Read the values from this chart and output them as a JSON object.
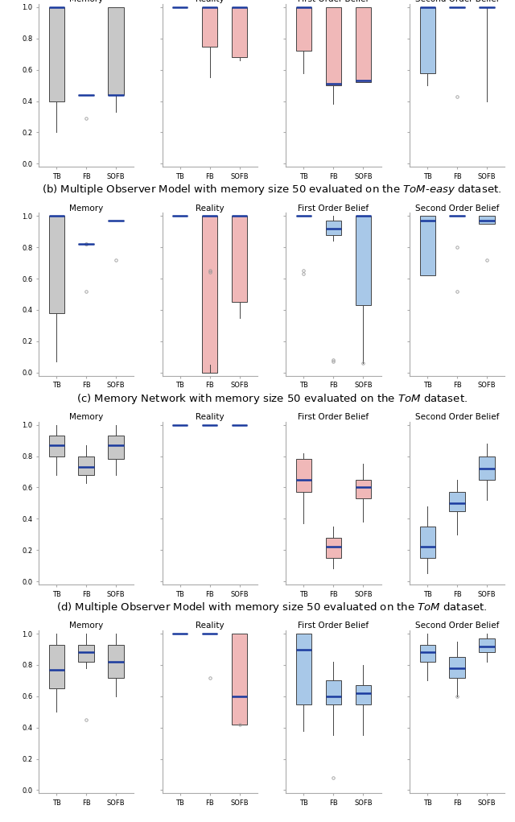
{
  "row0": {
    "subplots": [
      {
        "title": "Memory",
        "color": "#c8c8c8",
        "boxes": [
          {
            "label": "TB",
            "q1": 0.4,
            "median": 1.0,
            "q3": 1.0,
            "whislo": 0.2,
            "whishi": 1.0,
            "fliers": []
          },
          {
            "label": "FB",
            "q1": 0.44,
            "median": 0.44,
            "q3": 0.44,
            "whislo": 0.44,
            "whishi": 0.44,
            "fliers": [
              0.29
            ]
          },
          {
            "label": "SOFB",
            "q1": 0.44,
            "median": 0.44,
            "q3": 1.0,
            "whislo": 0.33,
            "whishi": 1.0,
            "fliers": []
          }
        ]
      },
      {
        "title": "Reality",
        "color": "#f0b8b8",
        "boxes": [
          {
            "label": "TB",
            "q1": 1.0,
            "median": 1.0,
            "q3": 1.0,
            "whislo": 1.0,
            "whishi": 1.0,
            "fliers": []
          },
          {
            "label": "FB",
            "q1": 0.75,
            "median": 1.0,
            "q3": 1.0,
            "whislo": 0.55,
            "whishi": 1.0,
            "fliers": []
          },
          {
            "label": "SOFB",
            "q1": 0.68,
            "median": 1.0,
            "q3": 1.0,
            "whislo": 0.66,
            "whishi": 1.0,
            "fliers": []
          }
        ]
      },
      {
        "title": "First Order Belief",
        "color": "#f0b8b8",
        "boxes": [
          {
            "label": "TB",
            "q1": 0.72,
            "median": 1.0,
            "q3": 1.0,
            "whislo": 0.58,
            "whishi": 1.0,
            "fliers": []
          },
          {
            "label": "FB",
            "q1": 0.5,
            "median": 0.51,
            "q3": 1.0,
            "whislo": 0.38,
            "whishi": 1.0,
            "fliers": []
          },
          {
            "label": "SOFB",
            "q1": 0.52,
            "median": 0.53,
            "q3": 1.0,
            "whislo": 0.52,
            "whishi": 1.0,
            "fliers": []
          }
        ]
      },
      {
        "title": "Second Order Belief",
        "color": "#a8c8e8",
        "boxes": [
          {
            "label": "TB",
            "q1": 0.58,
            "median": 1.0,
            "q3": 1.0,
            "whislo": 0.5,
            "whishi": 1.0,
            "fliers": []
          },
          {
            "label": "FB",
            "q1": 1.0,
            "median": 1.0,
            "q3": 1.0,
            "whislo": 1.0,
            "whishi": 1.0,
            "fliers": [
              0.43
            ]
          },
          {
            "label": "SOFB",
            "q1": 1.0,
            "median": 1.0,
            "q3": 1.0,
            "whislo": 0.4,
            "whishi": 1.0,
            "fliers": []
          }
        ]
      }
    ]
  },
  "rows": [
    {
      "caption_parts": [
        {
          "text": "(b) Multiple Observer Model with memory size 50 evaluated on the ",
          "italic": false
        },
        {
          "text": "ToM",
          "italic": true
        },
        {
          "text": "-",
          "italic": false
        },
        {
          "text": "easy",
          "italic": true
        },
        {
          "text": " dataset.",
          "italic": false
        }
      ],
      "subplots": [
        {
          "title": "Memory",
          "color": "#c8c8c8",
          "boxes": [
            {
              "label": "TB",
              "q1": 0.38,
              "median": 1.0,
              "q3": 1.0,
              "whislo": 0.07,
              "whishi": 1.0,
              "fliers": []
            },
            {
              "label": "FB",
              "q1": 0.82,
              "median": 0.82,
              "q3": 0.82,
              "whislo": 0.82,
              "whishi": 0.82,
              "fliers": [
                0.82,
                0.82,
                0.52
              ]
            },
            {
              "label": "SOFB",
              "q1": 0.97,
              "median": 0.97,
              "q3": 0.97,
              "whislo": 0.97,
              "whishi": 0.97,
              "fliers": [
                0.72
              ]
            }
          ]
        },
        {
          "title": "Reality",
          "color": "#f0b8b8",
          "boxes": [
            {
              "label": "TB",
              "q1": 1.0,
              "median": 1.0,
              "q3": 1.0,
              "whislo": 1.0,
              "whishi": 1.0,
              "fliers": []
            },
            {
              "label": "FB",
              "q1": 0.0,
              "median": 1.0,
              "q3": 1.0,
              "whislo": 0.05,
              "whishi": 1.0,
              "fliers": [
                0.65,
                0.64
              ]
            },
            {
              "label": "SOFB",
              "q1": 0.45,
              "median": 1.0,
              "q3": 1.0,
              "whislo": 0.35,
              "whishi": 1.0,
              "fliers": []
            }
          ]
        },
        {
          "title": "First Order Belief",
          "color": "#a8c8e8",
          "boxes": [
            {
              "label": "TB",
              "q1": 1.0,
              "median": 1.0,
              "q3": 1.0,
              "whislo": 1.0,
              "whishi": 1.0,
              "fliers": [
                0.65,
                0.63
              ]
            },
            {
              "label": "FB",
              "q1": 0.88,
              "median": 0.92,
              "q3": 0.97,
              "whislo": 0.84,
              "whishi": 1.0,
              "fliers": [
                0.08,
                0.07
              ]
            },
            {
              "label": "SOFB",
              "q1": 0.43,
              "median": 1.0,
              "q3": 1.0,
              "whislo": 0.06,
              "whishi": 1.0,
              "fliers": [
                0.06
              ]
            }
          ]
        },
        {
          "title": "Second Order Belief",
          "color": "#a8c8e8",
          "boxes": [
            {
              "label": "TB",
              "q1": 0.62,
              "median": 0.97,
              "q3": 1.0,
              "whislo": 0.62,
              "whishi": 1.0,
              "fliers": []
            },
            {
              "label": "FB",
              "q1": 1.0,
              "median": 1.0,
              "q3": 1.0,
              "whislo": 1.0,
              "whishi": 1.0,
              "fliers": [
                0.8,
                0.52
              ]
            },
            {
              "label": "SOFB",
              "q1": 0.95,
              "median": 0.97,
              "q3": 1.0,
              "whislo": 0.95,
              "whishi": 1.0,
              "fliers": [
                0.72
              ]
            }
          ]
        }
      ]
    },
    {
      "caption_parts": [
        {
          "text": "(c) Memory Network with memory size 50 evaluated on the ",
          "italic": false
        },
        {
          "text": "ToM",
          "italic": true
        },
        {
          "text": " dataset.",
          "italic": false
        }
      ],
      "subplots": [
        {
          "title": "Memory",
          "color": "#c8c8c8",
          "boxes": [
            {
              "label": "TB",
              "q1": 0.8,
              "median": 0.87,
              "q3": 0.93,
              "whislo": 0.68,
              "whishi": 1.0,
              "fliers": []
            },
            {
              "label": "FB",
              "q1": 0.68,
              "median": 0.73,
              "q3": 0.8,
              "whislo": 0.63,
              "whishi": 0.87,
              "fliers": []
            },
            {
              "label": "SOFB",
              "q1": 0.78,
              "median": 0.87,
              "q3": 0.93,
              "whislo": 0.68,
              "whishi": 1.0,
              "fliers": []
            }
          ]
        },
        {
          "title": "Reality",
          "color": "#f0b8b8",
          "boxes": [
            {
              "label": "TB",
              "q1": 1.0,
              "median": 1.0,
              "q3": 1.0,
              "whislo": 1.0,
              "whishi": 1.0,
              "fliers": []
            },
            {
              "label": "FB",
              "q1": 1.0,
              "median": 1.0,
              "q3": 1.0,
              "whislo": 1.0,
              "whishi": 1.0,
              "fliers": []
            },
            {
              "label": "SOFB",
              "q1": 1.0,
              "median": 1.0,
              "q3": 1.0,
              "whislo": 1.0,
              "whishi": 1.0,
              "fliers": []
            }
          ]
        },
        {
          "title": "First Order Belief",
          "color": "#f0b8b8",
          "boxes": [
            {
              "label": "TB",
              "q1": 0.57,
              "median": 0.65,
              "q3": 0.78,
              "whislo": 0.37,
              "whishi": 0.82,
              "fliers": []
            },
            {
              "label": "FB",
              "q1": 0.15,
              "median": 0.22,
              "q3": 0.28,
              "whislo": 0.08,
              "whishi": 0.35,
              "fliers": []
            },
            {
              "label": "SOFB",
              "q1": 0.53,
              "median": 0.6,
              "q3": 0.65,
              "whislo": 0.38,
              "whishi": 0.75,
              "fliers": []
            }
          ]
        },
        {
          "title": "Second Order Belief",
          "color": "#a8c8e8",
          "boxes": [
            {
              "label": "TB",
              "q1": 0.15,
              "median": 0.22,
              "q3": 0.35,
              "whislo": 0.05,
              "whishi": 0.48,
              "fliers": []
            },
            {
              "label": "FB",
              "q1": 0.45,
              "median": 0.5,
              "q3": 0.57,
              "whislo": 0.3,
              "whishi": 0.65,
              "fliers": []
            },
            {
              "label": "SOFB",
              "q1": 0.65,
              "median": 0.72,
              "q3": 0.8,
              "whislo": 0.52,
              "whishi": 0.88,
              "fliers": []
            }
          ]
        }
      ]
    },
    {
      "caption_parts": [
        {
          "text": "(d) Multiple Observer Model with memory size 50 evaluated on the ",
          "italic": false
        },
        {
          "text": "ToM",
          "italic": true
        },
        {
          "text": " dataset.",
          "italic": false
        }
      ],
      "subplots": [
        {
          "title": "Memory",
          "color": "#c8c8c8",
          "boxes": [
            {
              "label": "TB",
              "q1": 0.65,
              "median": 0.77,
              "q3": 0.93,
              "whislo": 0.5,
              "whishi": 1.0,
              "fliers": []
            },
            {
              "label": "FB",
              "q1": 0.82,
              "median": 0.88,
              "q3": 0.93,
              "whislo": 0.78,
              "whishi": 1.0,
              "fliers": [
                0.45
              ]
            },
            {
              "label": "SOFB",
              "q1": 0.72,
              "median": 0.82,
              "q3": 0.93,
              "whislo": 0.6,
              "whishi": 1.0,
              "fliers": []
            }
          ]
        },
        {
          "title": "Reality",
          "color": "#f0b8b8",
          "boxes": [
            {
              "label": "TB",
              "q1": 1.0,
              "median": 1.0,
              "q3": 1.0,
              "whislo": 1.0,
              "whishi": 1.0,
              "fliers": []
            },
            {
              "label": "FB",
              "q1": 1.0,
              "median": 1.0,
              "q3": 1.0,
              "whislo": 1.0,
              "whishi": 1.0,
              "fliers": [
                0.72
              ]
            },
            {
              "label": "SOFB",
              "q1": 0.42,
              "median": 0.6,
              "q3": 1.0,
              "whislo": 0.42,
              "whishi": 1.0,
              "fliers": [
                0.42
              ]
            }
          ]
        },
        {
          "title": "First Order Belief",
          "color": "#a8c8e8",
          "boxes": [
            {
              "label": "TB",
              "q1": 0.55,
              "median": 0.9,
              "q3": 1.0,
              "whislo": 0.38,
              "whishi": 1.0,
              "fliers": []
            },
            {
              "label": "FB",
              "q1": 0.55,
              "median": 0.6,
              "q3": 0.7,
              "whislo": 0.35,
              "whishi": 0.82,
              "fliers": [
                0.08
              ]
            },
            {
              "label": "SOFB",
              "q1": 0.55,
              "median": 0.62,
              "q3": 0.67,
              "whislo": 0.35,
              "whishi": 0.8,
              "fliers": []
            }
          ]
        },
        {
          "title": "Second Order Belief",
          "color": "#a8c8e8",
          "boxes": [
            {
              "label": "TB",
              "q1": 0.82,
              "median": 0.88,
              "q3": 0.93,
              "whislo": 0.7,
              "whishi": 1.0,
              "fliers": []
            },
            {
              "label": "FB",
              "q1": 0.72,
              "median": 0.78,
              "q3": 0.85,
              "whislo": 0.6,
              "whishi": 0.95,
              "fliers": [
                0.6
              ]
            },
            {
              "label": "SOFB",
              "q1": 0.88,
              "median": 0.92,
              "q3": 0.97,
              "whislo": 0.82,
              "whishi": 1.0,
              "fliers": []
            }
          ]
        }
      ]
    }
  ],
  "median_color": "#1a3a9e",
  "whisker_color": "#444444",
  "flier_color": "#999999",
  "box_edge_color": "#444444",
  "yticks": [
    0.0,
    0.2,
    0.4,
    0.6,
    0.8,
    1.0
  ],
  "title_fontsize": 7.5,
  "caption_fontsize": 9.5
}
